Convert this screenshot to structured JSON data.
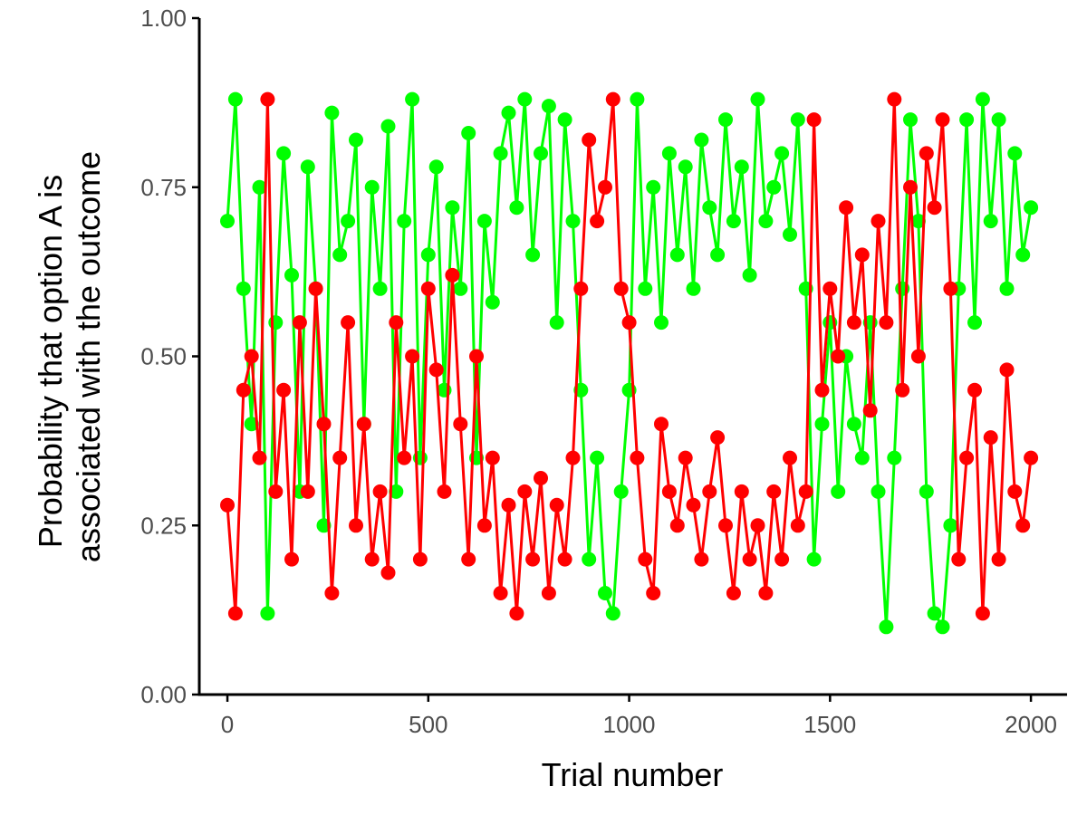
{
  "chart_data": {
    "type": "line",
    "title": "",
    "xlabel": "Trial number",
    "ylabel_line1": "Probability that option A is",
    "ylabel_line2": "associated with the outcome",
    "xlim": [
      -70,
      2090
    ],
    "ylim": [
      0,
      1
    ],
    "xticks": [
      0,
      500,
      1000,
      1500,
      2000
    ],
    "xtick_labels": [
      "0",
      "500",
      "1000",
      "1500",
      "2000"
    ],
    "yticks": [
      0,
      0.25,
      0.5,
      0.75,
      1
    ],
    "ytick_labels": [
      "0.00",
      "0.25",
      "0.50",
      "0.75",
      "1.00"
    ],
    "grid": false,
    "legend": "none",
    "series": [
      {
        "color": "#00ff00",
        "x": [
          0,
          20,
          40,
          60,
          80,
          100,
          120,
          140,
          160,
          180,
          200,
          220,
          240,
          260,
          280,
          300,
          320,
          340,
          360,
          380,
          400,
          420,
          440,
          460,
          480,
          500,
          520,
          540,
          560,
          580,
          600,
          620,
          640,
          660,
          680,
          700,
          720,
          740,
          760,
          780,
          800,
          820,
          840,
          860,
          880,
          900,
          920,
          940,
          960,
          980,
          1000,
          1020,
          1040,
          1060,
          1080,
          1100,
          1120,
          1140,
          1160,
          1180,
          1200,
          1220,
          1240,
          1260,
          1280,
          1300,
          1320,
          1340,
          1360,
          1380,
          1400,
          1420,
          1440,
          1460,
          1480,
          1500,
          1520,
          1540,
          1560,
          1580,
          1600,
          1620,
          1640,
          1660,
          1680,
          1700,
          1720,
          1740,
          1760,
          1780,
          1800,
          1820,
          1840,
          1860,
          1880,
          1900,
          1920,
          1940,
          1960,
          1980,
          2000
        ],
        "values": [
          0.7,
          0.88,
          0.6,
          0.4,
          0.75,
          0.12,
          0.55,
          0.8,
          0.62,
          0.3,
          0.78,
          0.6,
          0.25,
          0.86,
          0.65,
          0.7,
          0.82,
          0.4,
          0.75,
          0.6,
          0.84,
          0.3,
          0.7,
          0.88,
          0.35,
          0.65,
          0.78,
          0.45,
          0.72,
          0.6,
          0.83,
          0.35,
          0.7,
          0.58,
          0.8,
          0.86,
          0.72,
          0.88,
          0.65,
          0.8,
          0.87,
          0.55,
          0.85,
          0.7,
          0.45,
          0.2,
          0.35,
          0.15,
          0.12,
          0.3,
          0.45,
          0.88,
          0.6,
          0.75,
          0.55,
          0.8,
          0.65,
          0.78,
          0.6,
          0.82,
          0.72,
          0.65,
          0.85,
          0.7,
          0.78,
          0.62,
          0.88,
          0.7,
          0.75,
          0.8,
          0.68,
          0.85,
          0.6,
          0.2,
          0.4,
          0.55,
          0.3,
          0.5,
          0.4,
          0.35,
          0.55,
          0.3,
          0.1,
          0.35,
          0.6,
          0.85,
          0.7,
          0.3,
          0.12,
          0.1,
          0.25,
          0.6,
          0.85,
          0.55,
          0.88,
          0.7,
          0.85,
          0.6,
          0.8,
          0.65,
          0.72
        ]
      },
      {
        "color": "#ff0000",
        "x": [
          0,
          20,
          40,
          60,
          80,
          100,
          120,
          140,
          160,
          180,
          200,
          220,
          240,
          260,
          280,
          300,
          320,
          340,
          360,
          380,
          400,
          420,
          440,
          460,
          480,
          500,
          520,
          540,
          560,
          580,
          600,
          620,
          640,
          660,
          680,
          700,
          720,
          740,
          760,
          780,
          800,
          820,
          840,
          860,
          880,
          900,
          920,
          940,
          960,
          980,
          1000,
          1020,
          1040,
          1060,
          1080,
          1100,
          1120,
          1140,
          1160,
          1180,
          1200,
          1220,
          1240,
          1260,
          1280,
          1300,
          1320,
          1340,
          1360,
          1380,
          1400,
          1420,
          1440,
          1460,
          1480,
          1500,
          1520,
          1540,
          1560,
          1580,
          1600,
          1620,
          1640,
          1660,
          1680,
          1700,
          1720,
          1740,
          1760,
          1780,
          1800,
          1820,
          1840,
          1860,
          1880,
          1900,
          1920,
          1940,
          1960,
          1980,
          2000
        ],
        "values": [
          0.28,
          0.12,
          0.45,
          0.5,
          0.35,
          0.88,
          0.3,
          0.45,
          0.2,
          0.55,
          0.3,
          0.6,
          0.4,
          0.15,
          0.35,
          0.55,
          0.25,
          0.4,
          0.2,
          0.3,
          0.18,
          0.55,
          0.35,
          0.5,
          0.2,
          0.6,
          0.48,
          0.3,
          0.62,
          0.4,
          0.2,
          0.5,
          0.25,
          0.35,
          0.15,
          0.28,
          0.12,
          0.3,
          0.2,
          0.32,
          0.15,
          0.28,
          0.2,
          0.35,
          0.6,
          0.82,
          0.7,
          0.75,
          0.88,
          0.6,
          0.55,
          0.35,
          0.2,
          0.15,
          0.4,
          0.3,
          0.25,
          0.35,
          0.28,
          0.2,
          0.3,
          0.38,
          0.25,
          0.15,
          0.3,
          0.2,
          0.25,
          0.15,
          0.3,
          0.2,
          0.35,
          0.25,
          0.3,
          0.85,
          0.45,
          0.6,
          0.5,
          0.72,
          0.55,
          0.65,
          0.42,
          0.7,
          0.55,
          0.88,
          0.45,
          0.75,
          0.5,
          0.8,
          0.72,
          0.85,
          0.6,
          0.2,
          0.35,
          0.45,
          0.12,
          0.38,
          0.2,
          0.48,
          0.3,
          0.25,
          0.35
        ]
      }
    ]
  }
}
